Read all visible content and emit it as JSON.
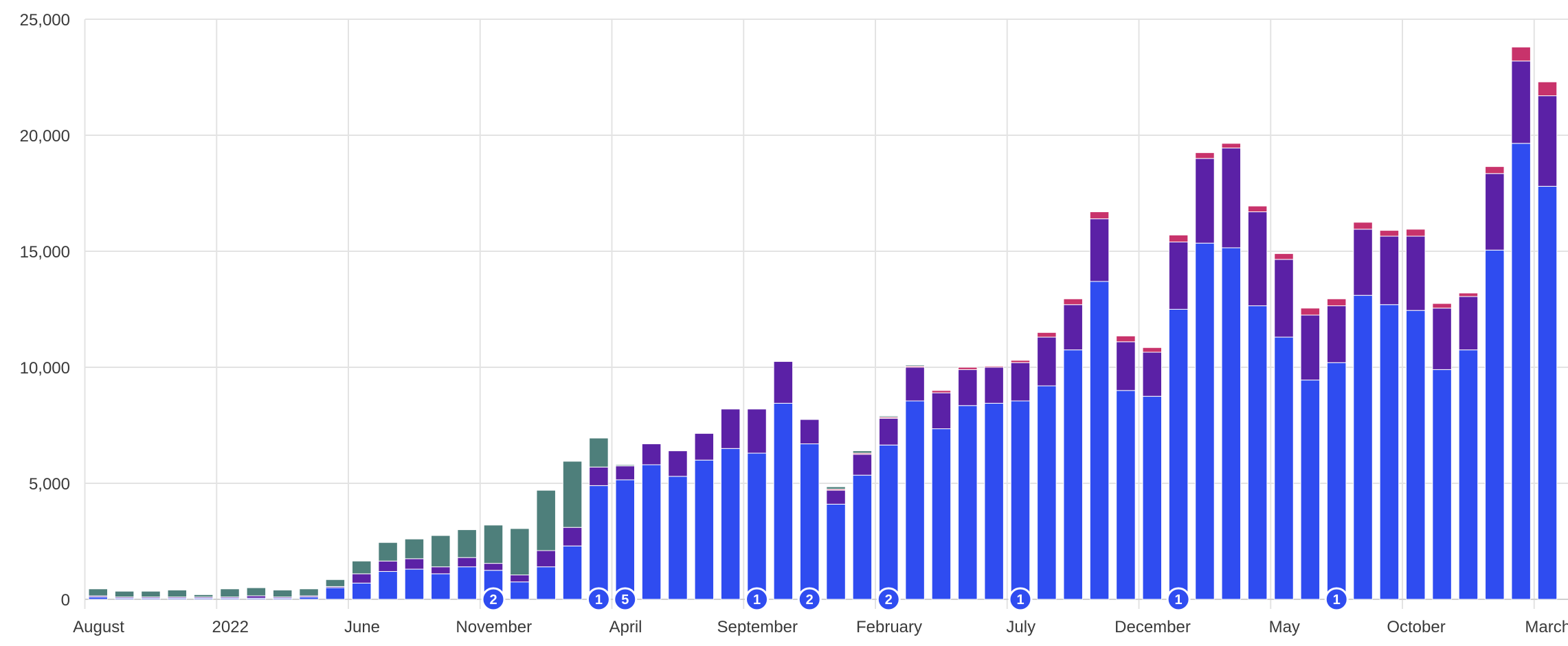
{
  "chart_data": {
    "type": "bar",
    "stacked": true,
    "title": "",
    "xlabel": "",
    "ylabel": "",
    "ylim": [
      0,
      25000
    ],
    "y_ticks": [
      0,
      5000,
      10000,
      15000,
      20000,
      25000
    ],
    "y_tick_labels": [
      "0",
      "5,000",
      "10,000",
      "15,000",
      "20,000",
      "25,000"
    ],
    "grid": true,
    "legend": "none",
    "x_axis_labels": [
      {
        "bar": 0,
        "text": "August"
      },
      {
        "bar": 5,
        "text": "2022"
      },
      {
        "bar": 10,
        "text": "June"
      },
      {
        "bar": 15,
        "text": "November"
      },
      {
        "bar": 20,
        "text": "April"
      },
      {
        "bar": 25,
        "text": "September"
      },
      {
        "bar": 30,
        "text": "February"
      },
      {
        "bar": 35,
        "text": "July"
      },
      {
        "bar": 40,
        "text": "December"
      },
      {
        "bar": 45,
        "text": "May"
      },
      {
        "bar": 50,
        "text": "October"
      },
      {
        "bar": 55,
        "text": "March"
      }
    ],
    "series": [
      {
        "key": "blue",
        "color": "#2f4cf0",
        "values": [
          100,
          50,
          50,
          50,
          50,
          50,
          50,
          50,
          100,
          500,
          700,
          1200,
          1300,
          1100,
          1400,
          1250,
          750,
          1400,
          2300,
          4900,
          5150,
          5800,
          5300,
          6000,
          6500,
          6300,
          8450,
          6700,
          4100,
          5350,
          6650,
          8550,
          7350,
          8350,
          8450,
          8550,
          9200,
          10750,
          13700,
          9000,
          8750,
          12500,
          15350,
          15150,
          12650,
          11300,
          9450,
          10200,
          13100,
          12700,
          12450,
          9900,
          10750,
          15050,
          19650,
          17800
        ]
      },
      {
        "key": "purple",
        "color": "#5b21a6",
        "values": [
          50,
          50,
          50,
          50,
          50,
          50,
          100,
          50,
          50,
          50,
          400,
          450,
          450,
          300,
          400,
          300,
          300,
          700,
          800,
          800,
          600,
          900,
          1100,
          1150,
          1700,
          1900,
          1800,
          1050,
          600,
          900,
          1150,
          1450,
          1550,
          1550,
          1550,
          1650,
          2100,
          1950,
          2700,
          2100,
          1900,
          2900,
          3650,
          4300,
          4050,
          3350,
          2800,
          2450,
          2850,
          2950,
          3200,
          2650,
          2300,
          3300,
          3550,
          3900
        ]
      },
      {
        "key": "pink",
        "color": "#c8336b",
        "values": [
          0,
          0,
          0,
          0,
          0,
          0,
          0,
          0,
          0,
          0,
          0,
          0,
          0,
          0,
          0,
          0,
          0,
          0,
          0,
          0,
          0,
          0,
          0,
          0,
          0,
          0,
          0,
          0,
          50,
          50,
          50,
          50,
          100,
          100,
          50,
          100,
          200,
          250,
          300,
          250,
          200,
          300,
          250,
          200,
          250,
          250,
          300,
          300,
          300,
          250,
          300,
          200,
          150,
          300,
          600,
          600
        ]
      },
      {
        "key": "teal",
        "color": "#4e7f7b",
        "values": [
          300,
          250,
          250,
          300,
          100,
          350,
          350,
          300,
          300,
          300,
          550,
          800,
          850,
          1350,
          1200,
          1650,
          2000,
          2600,
          2850,
          1250,
          50,
          0,
          0,
          0,
          0,
          0,
          0,
          0,
          100,
          100,
          50,
          50,
          0,
          0,
          0,
          0,
          0,
          0,
          0,
          0,
          0,
          0,
          0,
          0,
          0,
          0,
          0,
          0,
          0,
          0,
          0,
          0,
          0,
          0,
          0,
          0
        ]
      }
    ],
    "annotations": [
      {
        "bar": 15,
        "text": "2"
      },
      {
        "bar": 19,
        "text": "1"
      },
      {
        "bar": 20,
        "text": "5"
      },
      {
        "bar": 25,
        "text": "1"
      },
      {
        "bar": 27,
        "text": "2"
      },
      {
        "bar": 30,
        "text": "2"
      },
      {
        "bar": 35,
        "text": "1"
      },
      {
        "bar": 41,
        "text": "1"
      },
      {
        "bar": 47,
        "text": "1"
      }
    ]
  }
}
